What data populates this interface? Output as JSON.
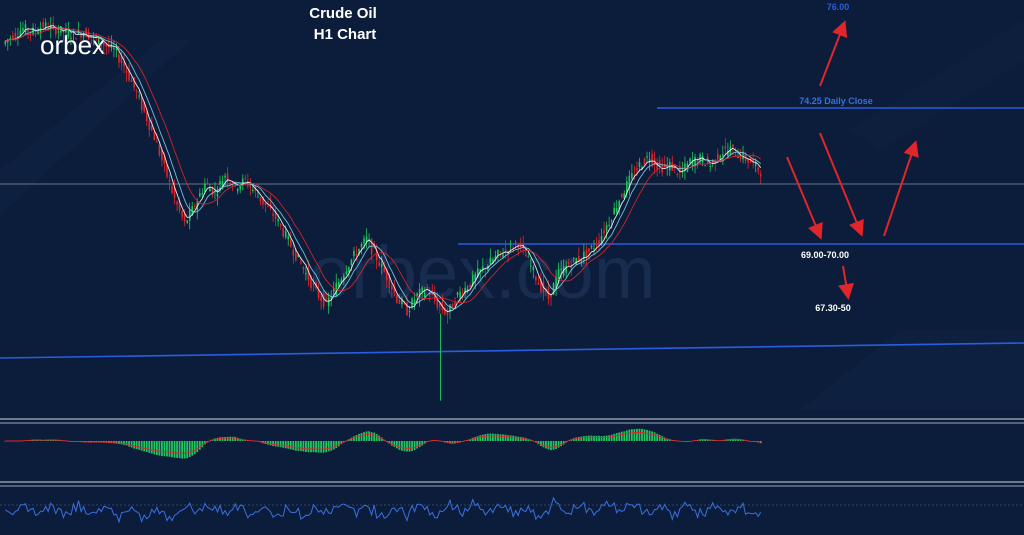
{
  "brand": {
    "logo_text": "orbex",
    "watermark_text": "orbex.com"
  },
  "header": {
    "title_line1": "Crude Oil",
    "title_line2": "H1 Chart"
  },
  "chart_data": {
    "type": "candlestick",
    "instrument": "Crude Oil",
    "timeframe": "H1",
    "price_series": [
      76.0,
      76.3,
      76.5,
      76.4,
      76.6,
      76.5,
      76.4,
      76.3,
      76.4,
      76.2,
      76.0,
      75.8,
      75.3,
      74.6,
      73.8,
      73.0,
      72.0,
      71.0,
      70.2,
      70.8,
      71.5,
      71.2,
      71.8,
      71.4,
      71.6,
      71.2,
      70.8,
      70.4,
      69.8,
      69.2,
      68.6,
      68.0,
      67.6,
      68.2,
      68.8,
      69.3,
      69.7,
      69.1,
      68.5,
      67.8,
      67.4,
      67.9,
      68.1,
      67.6,
      67.3,
      67.9,
      68.2,
      68.6,
      68.9,
      69.2,
      69.4,
      69.6,
      69.0,
      68.3,
      67.8,
      68.6,
      68.9,
      69.1,
      69.3,
      69.7,
      70.3,
      71.0,
      71.6,
      72.1,
      72.4,
      72.0,
      72.1,
      71.8,
      72.2,
      72.3,
      72.1,
      72.5,
      72.6,
      72.4,
      72.2,
      71.9
    ],
    "price_range": [
      64.2,
      77.1
    ],
    "horizontal_levels": [
      {
        "label": "74.25 Daily Close",
        "value": 74.25,
        "color": "#2a5de0"
      },
      {
        "label": "69.00-70.00",
        "value": 69.55,
        "color": "#2a5de0"
      }
    ],
    "current_price_line": 71.9,
    "trendline_support": {
      "color": "#2a5de0"
    },
    "target_labels": [
      "76.00",
      "69.00-70.00",
      "67.30-50"
    ],
    "projection_arrows_color": "#e0262b",
    "indicators": [
      {
        "name": "MACD histogram",
        "bar_color": "#22c55e",
        "signal_color": "#e0262b"
      },
      {
        "name": "Oscillator",
        "line_color": "#3b6fe0"
      }
    ],
    "candle_colors": {
      "up": "#22c55e",
      "down": "#e0262b"
    },
    "ma_colors": [
      "#ffffff",
      "#7fd3e8",
      "#e0262b"
    ]
  }
}
